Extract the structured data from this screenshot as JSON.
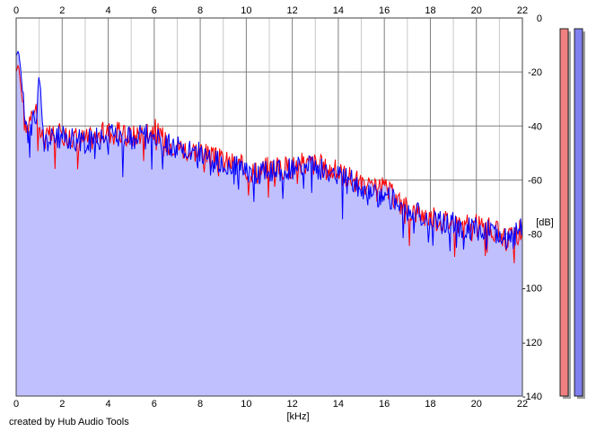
{
  "footer": {
    "credit": "created by Hub Audio Tools"
  },
  "chart_data": {
    "type": "line",
    "title": "",
    "xlabel": "[kHz]",
    "ylabel": "[dB]",
    "xlim": [
      0,
      22
    ],
    "ylim": [
      -140,
      0
    ],
    "x_ticks": [
      "0",
      "2",
      "4",
      "6",
      "8",
      "10",
      "12",
      "14",
      "16",
      "18",
      "20",
      "22"
    ],
    "y_ticks": [
      "0",
      "-20",
      "-40",
      "-60",
      "-80",
      "-100",
      "-120",
      "-140"
    ],
    "x_tick_values": [
      0,
      2,
      4,
      6,
      8,
      10,
      12,
      14,
      16,
      18,
      20,
      22
    ],
    "y_tick_values": [
      0,
      -20,
      -40,
      -60,
      -80,
      -100,
      -120,
      -140
    ],
    "grid": true,
    "fill_area": true,
    "colors": {
      "left_channel": "#ff0000",
      "right_channel": "#0000ff",
      "area_fill": "#c0c0ff",
      "grid_major": "#7f7f7f",
      "grid_minor": "#c8c8c8",
      "meter_left": "#f08080",
      "meter_right": "#8080f0"
    },
    "series": [
      {
        "color": "#ff0000",
        "x": [
          0,
          0.1,
          0.2,
          0.3,
          0.4,
          0.5,
          0.6,
          0.7,
          0.8,
          0.9,
          1.0,
          1.2,
          1.5,
          2.0,
          2.5,
          3.0,
          3.5,
          4.0,
          4.5,
          5.0,
          5.5,
          6.0,
          6.5,
          7.0,
          7.5,
          8.0,
          8.5,
          9.0,
          9.5,
          10.0,
          10.5,
          11.0,
          11.5,
          12.0,
          12.5,
          13.0,
          13.5,
          14.0,
          14.5,
          15.0,
          15.5,
          16.0,
          16.5,
          17.0,
          17.5,
          18.0,
          18.5,
          19.0,
          19.5,
          20.0,
          20.5,
          21.0,
          21.5,
          22.0
        ],
        "values": [
          -20,
          -17,
          -25,
          -33,
          -42,
          -40,
          -36,
          -31,
          -35,
          -33,
          -41,
          -45,
          -44,
          -43,
          -44,
          -45,
          -44,
          -42,
          -43,
          -44,
          -42,
          -41,
          -46,
          -47,
          -49,
          -49,
          -52,
          -53,
          -54,
          -56,
          -57,
          -55,
          -56,
          -55,
          -54,
          -54,
          -56,
          -57,
          -59,
          -62,
          -64,
          -63,
          -67,
          -71,
          -72,
          -74,
          -75,
          -75,
          -77,
          -77,
          -78,
          -80,
          -82,
          -78
        ]
      },
      {
        "color": "#0000ff",
        "x": [
          0,
          0.1,
          0.2,
          0.3,
          0.4,
          0.5,
          0.6,
          0.7,
          0.8,
          0.9,
          1.0,
          1.2,
          1.5,
          2.0,
          2.5,
          3.0,
          3.5,
          4.0,
          4.5,
          5.0,
          5.5,
          6.0,
          6.5,
          7.0,
          7.5,
          8.0,
          8.5,
          9.0,
          9.5,
          10.0,
          10.5,
          11.0,
          11.5,
          12.0,
          12.5,
          13.0,
          13.5,
          14.0,
          14.5,
          15.0,
          15.5,
          16.0,
          16.5,
          17.0,
          17.5,
          18.0,
          18.5,
          19.0,
          19.5,
          20.0,
          20.5,
          21.0,
          21.5,
          22.0
        ],
        "values": [
          -14,
          -12,
          -19,
          -30,
          -40,
          -43,
          -38,
          -34,
          -39,
          -36,
          -22,
          -46,
          -45,
          -44,
          -45,
          -46,
          -45,
          -43,
          -44,
          -45,
          -43,
          -42,
          -47,
          -48,
          -50,
          -50,
          -53,
          -54,
          -55,
          -58,
          -58,
          -56,
          -57,
          -56,
          -55,
          -55,
          -57,
          -58,
          -60,
          -64,
          -66,
          -65,
          -68,
          -72,
          -73,
          -75,
          -76,
          -76,
          -78,
          -78,
          -79,
          -81,
          -83,
          -76
        ]
      }
    ],
    "level_meters": [
      {
        "color": "#f08080",
        "value": 0
      },
      {
        "color": "#8080f0",
        "value": 0
      }
    ]
  }
}
